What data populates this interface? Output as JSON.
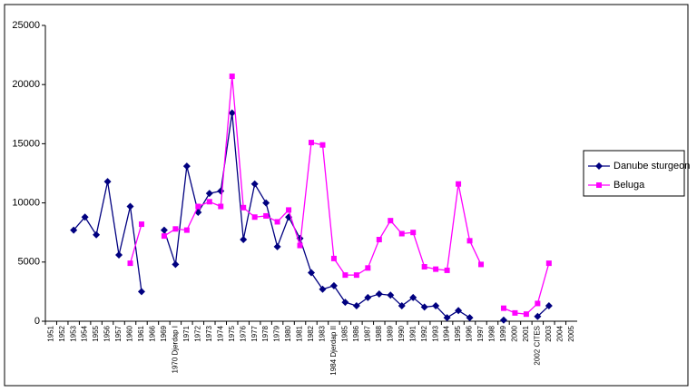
{
  "chart_data": {
    "type": "line",
    "categories": [
      "1951",
      "1952",
      "1953",
      "1954",
      "1955",
      "1956",
      "1957",
      "1960",
      "1961",
      "1966",
      "1969",
      "1970 Djerdap I",
      "1971",
      "1972",
      "1973",
      "1974",
      "1975",
      "1976",
      "1977",
      "1978",
      "1979",
      "1980",
      "1981",
      "1982",
      "1983",
      "1984 Djerdap II",
      "1985",
      "1986",
      "1987",
      "1988",
      "1989",
      "1990",
      "1991",
      "1992",
      "1993",
      "1994",
      "1995",
      "1996",
      "1997",
      "1998",
      "1999",
      "2000",
      "2001",
      "2002 CITES",
      "2003",
      "2004",
      "2005"
    ],
    "series": [
      {
        "name": "Danube sturgeon",
        "color": "#000080",
        "marker": "diamond",
        "values": [
          null,
          null,
          7700,
          8800,
          7300,
          11800,
          5600,
          9700,
          2500,
          null,
          7700,
          4800,
          13100,
          9200,
          10800,
          11000,
          17600,
          6900,
          11600,
          10000,
          6300,
          8800,
          7000,
          4100,
          2700,
          3000,
          1600,
          1300,
          2000,
          2300,
          2200,
          1300,
          2000,
          1200,
          1300,
          300,
          900,
          300,
          null,
          null,
          100,
          null,
          null,
          400,
          1300,
          null,
          null
        ]
      },
      {
        "name": "Beluga",
        "color": "#ff00ff",
        "marker": "square",
        "values": [
          null,
          null,
          null,
          null,
          null,
          null,
          null,
          4900,
          8200,
          null,
          7200,
          7800,
          7700,
          9700,
          10100,
          9700,
          20700,
          9600,
          8800,
          8900,
          8400,
          9400,
          6400,
          15100,
          14900,
          5300,
          3900,
          3900,
          4500,
          6900,
          8500,
          7400,
          7500,
          4600,
          4400,
          4300,
          11600,
          6800,
          4800,
          null,
          1100,
          700,
          600,
          1500,
          4900,
          null,
          null
        ]
      }
    ],
    "ylim": [
      0,
      25000
    ],
    "yticks": [
      0,
      5000,
      10000,
      15000,
      20000,
      25000
    ],
    "grid": false,
    "legend": "right"
  }
}
